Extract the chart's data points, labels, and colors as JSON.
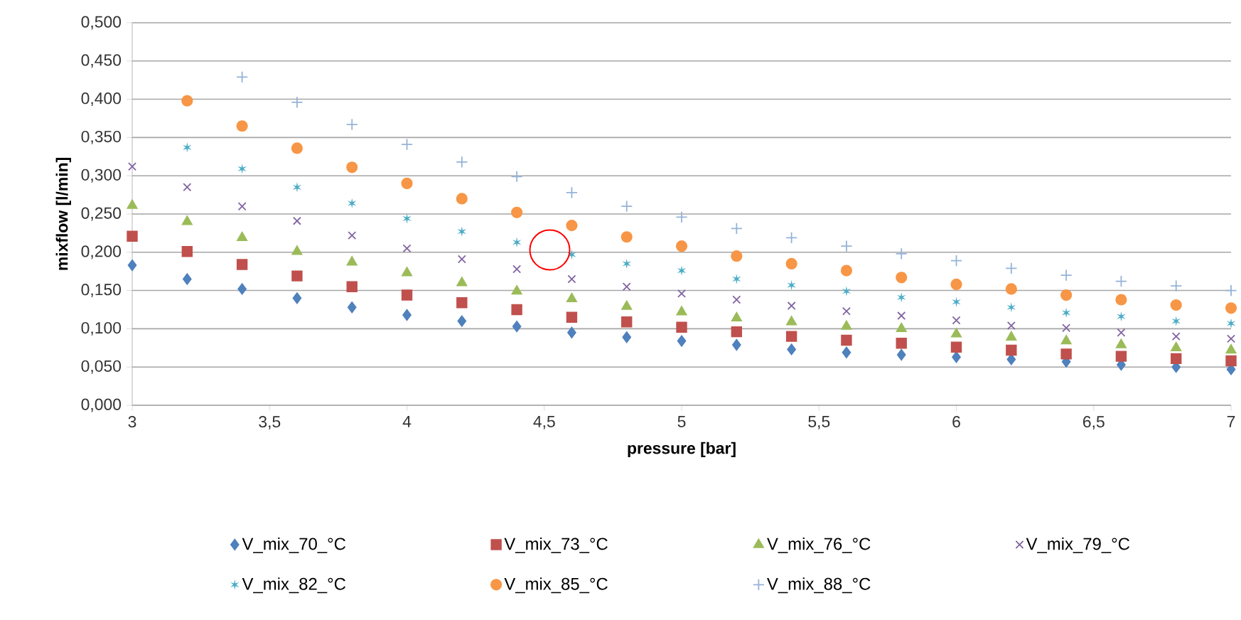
{
  "chart_data": {
    "type": "scatter",
    "xlabel": "pressure [bar]",
    "ylabel": "mixflow [l/min]",
    "x": [
      3.0,
      3.2,
      3.4,
      3.6,
      3.8,
      4.0,
      4.2,
      4.4,
      4.6,
      4.8,
      5.0,
      5.2,
      5.4,
      5.6,
      5.8,
      6.0,
      6.2,
      6.4,
      6.6,
      6.8,
      7.0
    ],
    "xlim": [
      3,
      7
    ],
    "xticks": [
      3,
      {
        "value": 3.5,
        "label": "3,5"
      },
      4,
      {
        "value": 4.5,
        "label": "4,5"
      },
      5,
      {
        "value": 5.5,
        "label": "5,5"
      },
      6,
      {
        "value": 6.5,
        "label": "6,5"
      },
      7
    ],
    "ylim": [
      0,
      0.5
    ],
    "yticks": [
      {
        "value": 0,
        "label": "0,000"
      },
      {
        "value": 0.05,
        "label": "0,050"
      },
      {
        "value": 0.1,
        "label": "0,100"
      },
      {
        "value": 0.15,
        "label": "0,150"
      },
      {
        "value": 0.2,
        "label": "0,200"
      },
      {
        "value": 0.25,
        "label": "0,250"
      },
      {
        "value": 0.3,
        "label": "0,300"
      },
      {
        "value": 0.35,
        "label": "0,350"
      },
      {
        "value": 0.4,
        "label": "0,400"
      },
      {
        "value": 0.45,
        "label": "0,450"
      },
      {
        "value": 0.5,
        "label": "0,500"
      }
    ],
    "grid": "y",
    "legend": "bottom",
    "series": [
      {
        "name": "V_mix_70_°C",
        "color": "#4f81bd",
        "marker": "diamond",
        "values": [
          0.183,
          0.165,
          0.152,
          0.14,
          0.128,
          0.118,
          0.11,
          0.103,
          0.095,
          0.089,
          0.084,
          0.079,
          0.073,
          0.069,
          0.066,
          0.063,
          0.06,
          0.057,
          0.053,
          0.05,
          0.047
        ]
      },
      {
        "name": "V_mix_73_°C",
        "color": "#c0504d",
        "marker": "square",
        "values": [
          0.221,
          0.201,
          0.184,
          0.169,
          0.155,
          0.144,
          0.134,
          0.125,
          0.115,
          0.109,
          0.102,
          0.096,
          0.09,
          0.085,
          0.081,
          0.076,
          0.072,
          0.067,
          0.064,
          0.061,
          0.058
        ]
      },
      {
        "name": "V_mix_76_°C",
        "color": "#9bbb59",
        "marker": "triangle",
        "values": [
          0.261,
          0.24,
          0.219,
          0.201,
          0.187,
          0.173,
          0.16,
          0.149,
          0.139,
          0.129,
          0.122,
          0.114,
          0.109,
          0.103,
          0.1,
          0.093,
          0.089,
          0.084,
          0.079,
          0.075,
          0.072
        ]
      },
      {
        "name": "V_mix_79_°C",
        "color": "#8064a2",
        "marker": "cross",
        "values": [
          0.312,
          0.285,
          0.26,
          0.241,
          0.222,
          0.205,
          0.191,
          0.178,
          0.165,
          0.155,
          0.146,
          0.138,
          0.13,
          0.123,
          0.117,
          0.111,
          0.104,
          0.101,
          0.095,
          0.09,
          0.087
        ]
      },
      {
        "name": "V_mix_82_°C",
        "color": "#4bacc6",
        "marker": "star",
        "values": [
          null,
          0.337,
          0.309,
          0.285,
          0.264,
          0.244,
          0.227,
          0.213,
          0.197,
          0.185,
          0.176,
          0.165,
          0.157,
          0.149,
          0.141,
          0.135,
          0.128,
          0.121,
          0.116,
          0.11,
          0.107
        ]
      },
      {
        "name": "V_mix_85_°C",
        "color": "#f79646",
        "marker": "circle",
        "values": [
          null,
          0.398,
          0.365,
          0.336,
          0.311,
          0.29,
          0.27,
          0.252,
          0.235,
          0.22,
          0.208,
          0.195,
          0.185,
          0.176,
          0.167,
          0.158,
          0.152,
          0.144,
          0.138,
          0.131,
          0.127
        ]
      },
      {
        "name": "V_mix_88_°C",
        "color": "#95b3d7",
        "marker": "plus",
        "values": [
          null,
          null,
          0.429,
          0.396,
          0.367,
          0.341,
          0.318,
          0.299,
          0.278,
          0.26,
          0.246,
          0.231,
          0.219,
          0.208,
          0.198,
          0.189,
          0.179,
          0.17,
          0.162,
          0.156,
          0.15
        ]
      }
    ]
  }
}
